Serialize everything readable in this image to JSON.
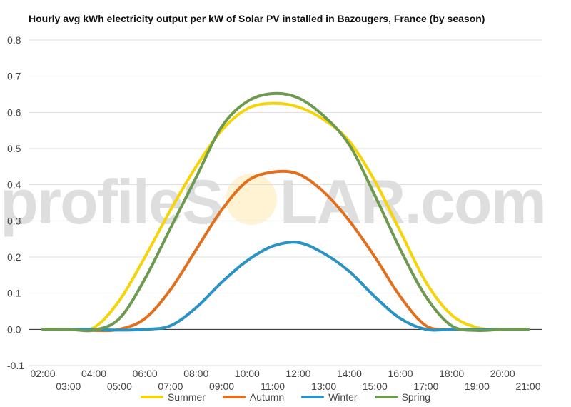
{
  "title": "Hourly avg kWh electricity output per kW of Solar PV installed in Bazougers, France (by season)",
  "watermark": {
    "left": "profileS",
    "right": "LAR.com"
  },
  "colors": {
    "Summer": "#f5d40a",
    "Autumn": "#e0701e",
    "Winter": "#2a93c2",
    "Spring": "#6e9a50",
    "grid": "#dddddd",
    "zero_line": "#222222"
  },
  "chart_data": {
    "type": "line",
    "x": [
      "02:00",
      "03:00",
      "04:00",
      "05:00",
      "06:00",
      "07:00",
      "08:00",
      "09:00",
      "10:00",
      "11:00",
      "12:00",
      "13:00",
      "14:00",
      "15:00",
      "16:00",
      "17:00",
      "18:00",
      "19:00",
      "20:00",
      "21:00"
    ],
    "x_tick_labels_top": [
      "02:00",
      "04:00",
      "06:00",
      "08:00",
      "10:00",
      "12:00",
      "14:00",
      "16:00",
      "18:00",
      "20:00"
    ],
    "x_tick_labels_bottom": [
      "03:00",
      "05:00",
      "07:00",
      "09:00",
      "11:00",
      "13:00",
      "15:00",
      "17:00",
      "19:00",
      "21:00"
    ],
    "y_ticks": [
      "0.8",
      "0.7",
      "0.6",
      "0.5",
      "0.4",
      "0.3",
      "0.2",
      "0.1",
      "0.0",
      "-0.1"
    ],
    "ylim": [
      -0.1,
      0.8
    ],
    "grid": true,
    "legend_position": "bottom",
    "series": [
      {
        "name": "Summer",
        "values": [
          0.0,
          0.0,
          0.005,
          0.08,
          0.2,
          0.33,
          0.45,
          0.55,
          0.61,
          0.625,
          0.615,
          0.58,
          0.52,
          0.41,
          0.27,
          0.13,
          0.04,
          0.005,
          0.0,
          0.0
        ]
      },
      {
        "name": "Autumn",
        "values": [
          0.0,
          0.0,
          -0.003,
          0.0,
          0.03,
          0.11,
          0.22,
          0.33,
          0.41,
          0.435,
          0.43,
          0.38,
          0.3,
          0.2,
          0.09,
          0.01,
          0.0,
          0.0,
          0.0,
          0.0
        ]
      },
      {
        "name": "Winter",
        "values": [
          0.0,
          0.0,
          0.0,
          -0.002,
          0.0,
          0.01,
          0.06,
          0.13,
          0.19,
          0.23,
          0.24,
          0.21,
          0.16,
          0.09,
          0.03,
          0.0,
          0.0,
          0.0,
          0.0,
          0.0
        ]
      },
      {
        "name": "Spring",
        "values": [
          0.0,
          0.0,
          -0.002,
          0.03,
          0.14,
          0.28,
          0.42,
          0.56,
          0.63,
          0.652,
          0.64,
          0.59,
          0.51,
          0.37,
          0.22,
          0.09,
          0.01,
          -0.003,
          0.0,
          0.0
        ]
      }
    ]
  }
}
